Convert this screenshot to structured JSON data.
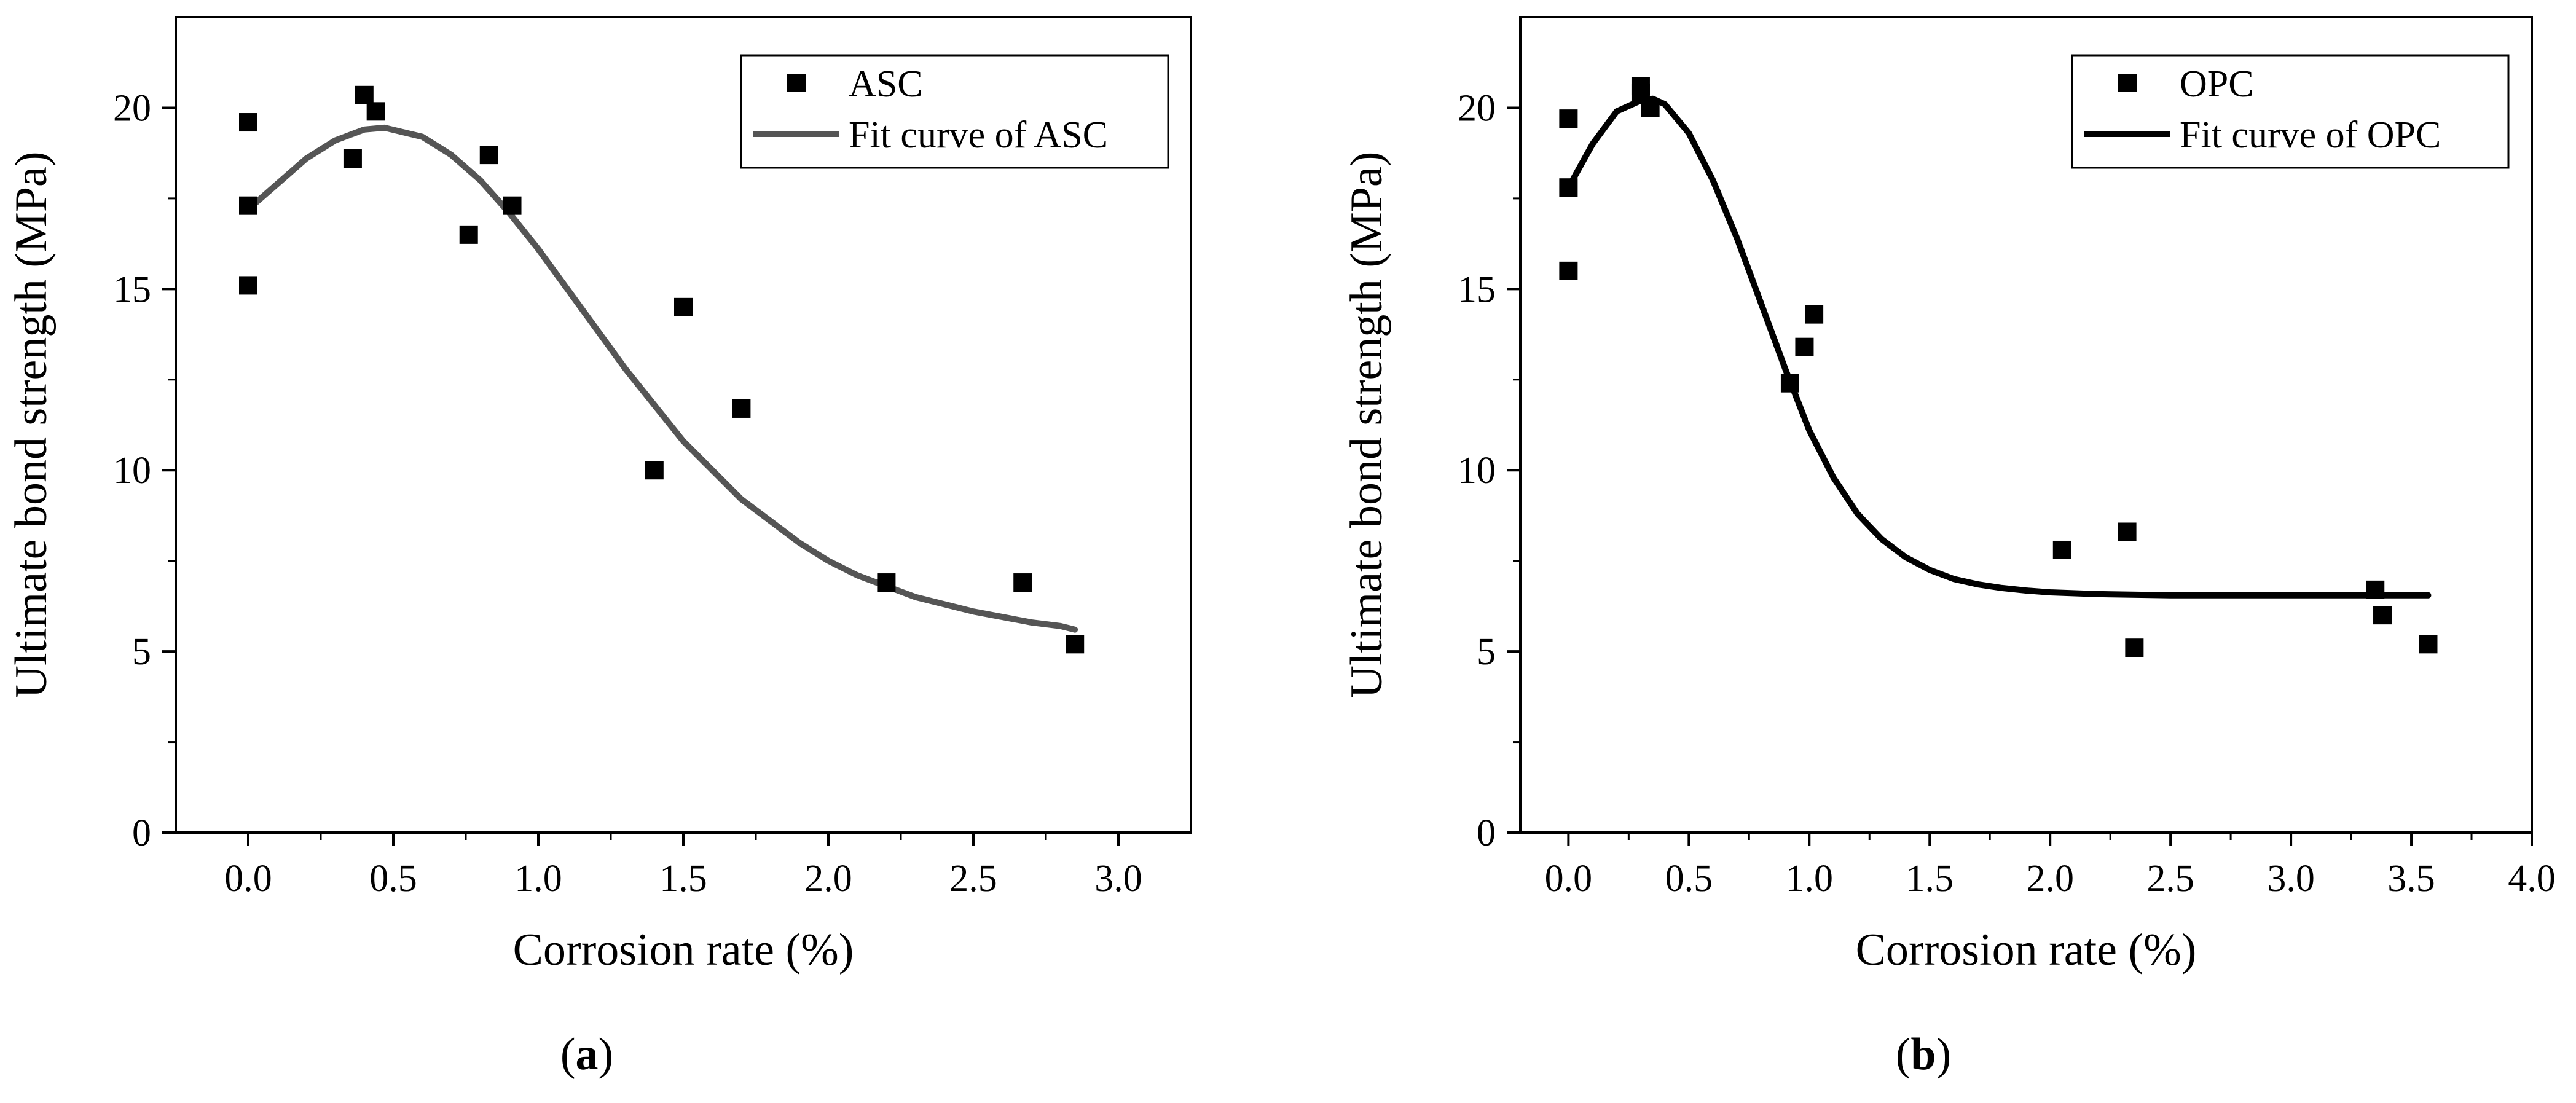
{
  "chart_data": [
    {
      "type": "scatter",
      "panel_prefix": "(",
      "panel_letter": "a",
      "panel_suffix": ")",
      "xlabel": "Corrosion rate (%)",
      "ylabel": "Ultimate bond strength (MPa)",
      "xlim": [
        -0.25,
        3.25
      ],
      "ylim": [
        0,
        22.5
      ],
      "xticks": [
        0.0,
        0.5,
        1.0,
        1.5,
        2.0,
        2.5,
        3.0
      ],
      "xtick_labels": [
        "0.0",
        "0.5",
        "1.0",
        "1.5",
        "2.0",
        "2.5",
        "3.0"
      ],
      "yticks": [
        0,
        5,
        10,
        15,
        20
      ],
      "ytick_labels": [
        "0",
        "5",
        "10",
        "15",
        "20"
      ],
      "legend_position": "top-right",
      "marker_series": {
        "name": "ASC",
        "color": "#000000",
        "x": [
          0.0,
          0.0,
          0.0,
          0.36,
          0.4,
          0.44,
          0.76,
          0.83,
          0.91,
          1.4,
          1.5,
          1.7,
          2.2,
          2.67,
          2.85
        ],
        "y": [
          19.6,
          17.3,
          15.1,
          18.6,
          20.35,
          19.9,
          16.5,
          18.7,
          17.3,
          10.0,
          14.5,
          11.7,
          6.9,
          6.9,
          5.2
        ]
      },
      "fit_series": {
        "name": "Fit curve of ASC",
        "color": "#555555",
        "x": [
          0.0,
          0.1,
          0.2,
          0.3,
          0.4,
          0.47,
          0.6,
          0.7,
          0.8,
          0.9,
          1.0,
          1.1,
          1.2,
          1.3,
          1.4,
          1.5,
          1.6,
          1.7,
          1.8,
          1.9,
          2.0,
          2.1,
          2.2,
          2.3,
          2.4,
          2.5,
          2.6,
          2.7,
          2.8,
          2.85
        ],
        "y": [
          17.2,
          17.9,
          18.6,
          19.1,
          19.4,
          19.45,
          19.2,
          18.7,
          18.0,
          17.1,
          16.1,
          15.0,
          13.9,
          12.8,
          11.8,
          10.8,
          10.0,
          9.2,
          8.6,
          8.0,
          7.5,
          7.1,
          6.8,
          6.5,
          6.3,
          6.1,
          5.95,
          5.8,
          5.7,
          5.6
        ]
      }
    },
    {
      "type": "scatter",
      "panel_prefix": "(",
      "panel_letter": "b",
      "panel_suffix": ")",
      "xlabel": "Corrosion rate (%)",
      "ylabel": "Ultimate bond strength (MPa)",
      "xlim": [
        -0.2,
        4.0
      ],
      "ylim": [
        0,
        22.5
      ],
      "xticks": [
        0.0,
        0.5,
        1.0,
        1.5,
        2.0,
        2.5,
        3.0,
        3.5,
        4.0
      ],
      "xtick_labels": [
        "0.0",
        "0.5",
        "1.0",
        "1.5",
        "2.0",
        "2.5",
        "3.0",
        "3.5",
        "4.0"
      ],
      "yticks": [
        0,
        5,
        10,
        15,
        20
      ],
      "ytick_labels": [
        "0",
        "5",
        "10",
        "15",
        "20"
      ],
      "legend_position": "top-right",
      "marker_series": {
        "name": "OPC",
        "color": "#000000",
        "x": [
          0.0,
          0.0,
          0.0,
          0.3,
          0.3,
          0.34,
          0.92,
          0.98,
          1.02,
          2.05,
          2.32,
          2.35,
          3.35,
          3.38,
          3.57
        ],
        "y": [
          19.7,
          17.8,
          15.5,
          20.6,
          20.4,
          20.0,
          12.4,
          13.4,
          14.3,
          7.8,
          8.3,
          5.1,
          6.7,
          6.0,
          5.2
        ]
      },
      "fit_series": {
        "name": "Fit curve of OPC",
        "color": "#000000",
        "x": [
          0.0,
          0.1,
          0.2,
          0.3,
          0.35,
          0.4,
          0.5,
          0.6,
          0.7,
          0.8,
          0.9,
          1.0,
          1.1,
          1.2,
          1.3,
          1.4,
          1.5,
          1.6,
          1.7,
          1.8,
          1.9,
          2.0,
          2.2,
          2.5,
          3.0,
          3.5,
          3.57
        ],
        "y": [
          17.8,
          19.0,
          19.9,
          20.2,
          20.25,
          20.1,
          19.3,
          18.0,
          16.4,
          14.6,
          12.8,
          11.1,
          9.8,
          8.8,
          8.1,
          7.6,
          7.25,
          7.0,
          6.85,
          6.75,
          6.68,
          6.63,
          6.58,
          6.55,
          6.55,
          6.55,
          6.55
        ]
      }
    }
  ]
}
